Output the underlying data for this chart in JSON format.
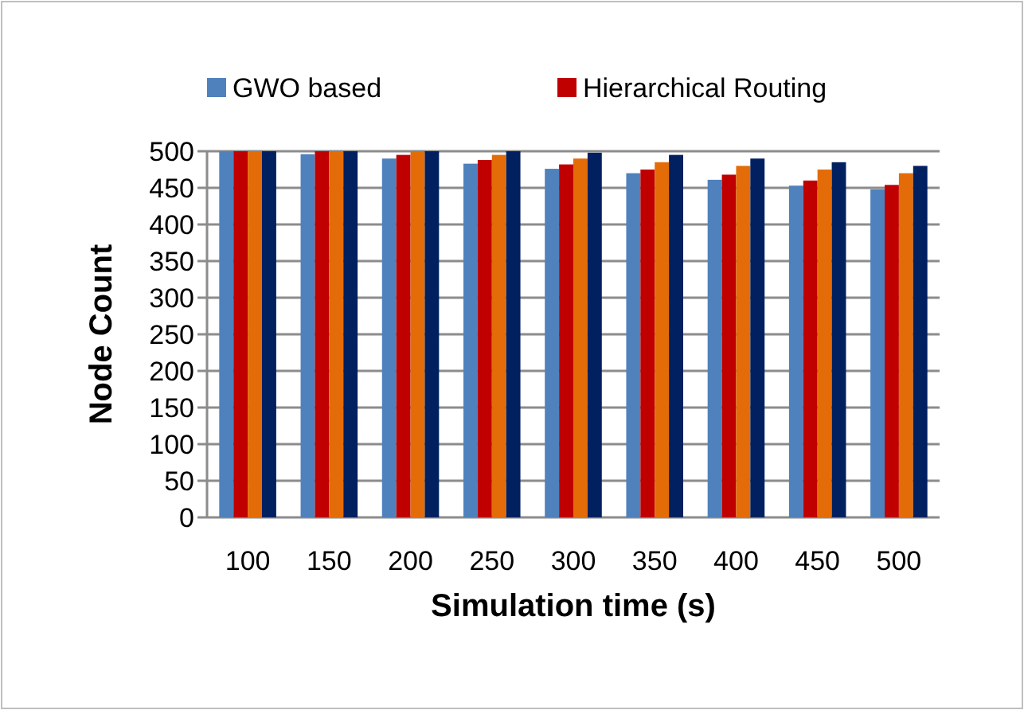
{
  "chart_data": {
    "type": "bar",
    "xlabel": "Simulation time (s)",
    "ylabel": "Node Count",
    "categories": [
      "100",
      "150",
      "200",
      "250",
      "300",
      "350",
      "400",
      "450",
      "500"
    ],
    "series": [
      {
        "name": "GWO based",
        "color": "#4f81bd",
        "values": [
          500,
          496,
          490,
          483,
          476,
          470,
          461,
          453,
          448
        ]
      },
      {
        "name": "Hierarchical Routing",
        "color": "#c00000",
        "values": [
          500,
          500,
          495,
          488,
          482,
          475,
          468,
          460,
          454
        ]
      },
      {
        "color": "#e36c09",
        "values": [
          500,
          500,
          500,
          495,
          490,
          485,
          480,
          475,
          470
        ]
      },
      {
        "color": "#002060",
        "values": [
          500,
          500,
          500,
          500,
          498,
          495,
          490,
          485,
          480
        ]
      }
    ],
    "ylim": [
      0,
      500
    ],
    "yticks": [
      0,
      50,
      100,
      150,
      200,
      250,
      300,
      350,
      400,
      450,
      500
    ],
    "grid": "y",
    "legend": "top"
  }
}
